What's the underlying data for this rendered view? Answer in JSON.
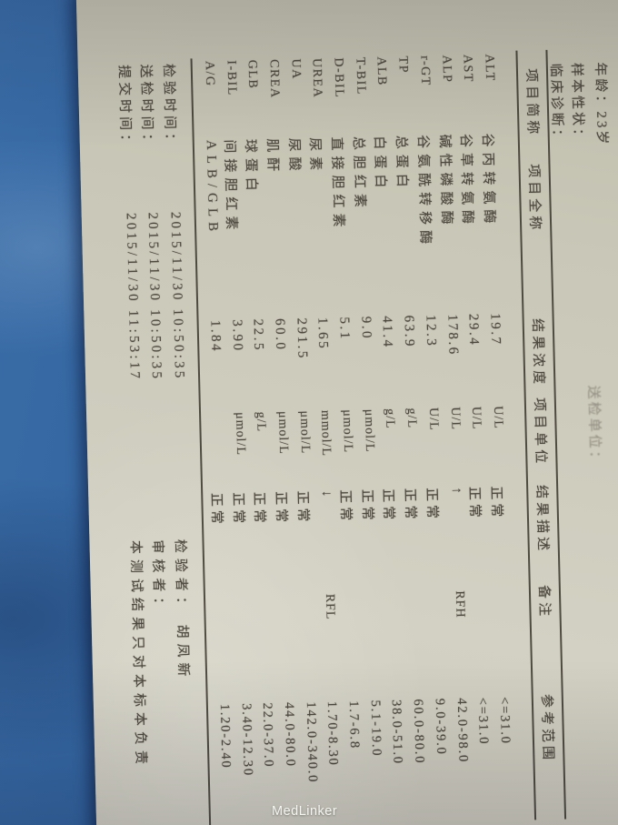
{
  "watermark": "MedLinker",
  "colors": {
    "cloth_blue": "#31639f",
    "paper": "#cdcbbb",
    "ink": "#4e4940"
  },
  "report": {
    "header_fields": [
      {
        "label": "年龄：",
        "value": "23岁"
      },
      {
        "label": "样本性状：",
        "value": ""
      },
      {
        "label": "临床诊断：",
        "value": ""
      }
    ],
    "clipped_fragment": "送检单位：",
    "table": {
      "headers": {
        "abbr": "项目简称",
        "full": "项目全称",
        "result": "结果浓度",
        "unit": "项目单位",
        "desc": "结果描述",
        "remark": "备注",
        "range": "参考范围"
      },
      "rows": [
        {
          "abbr": "ALT",
          "full": "谷丙转氨酶",
          "result": "19.7",
          "unit": "U/L",
          "desc": "正常",
          "remark": "",
          "range": "<=31.0"
        },
        {
          "abbr": "AST",
          "full": "谷草转氨酶",
          "result": "29.4",
          "unit": "U/L",
          "desc": "正常",
          "remark": "",
          "range": "<=31.0"
        },
        {
          "abbr": "ALP",
          "full": "碱性磷酸酶",
          "result": "178.6",
          "unit": "U/L",
          "desc": "↑",
          "remark": "RFH",
          "range": "42.0-98.0"
        },
        {
          "abbr": "r-GT",
          "full": "谷氨酰转移酶",
          "result": "12.3",
          "unit": "U/L",
          "desc": "正常",
          "remark": "",
          "range": "9.0-39.0"
        },
        {
          "abbr": "TP",
          "full": "总蛋白",
          "result": "63.9",
          "unit": "g/L",
          "desc": "正常",
          "remark": "",
          "range": "60.0-80.0"
        },
        {
          "abbr": "ALB",
          "full": "白蛋白",
          "result": "41.4",
          "unit": "g/L",
          "desc": "正常",
          "remark": "",
          "range": "38.0-51.0"
        },
        {
          "abbr": "T-BIL",
          "full": "总胆红素",
          "result": "9.0",
          "unit": "μmol/L",
          "desc": "正常",
          "remark": "",
          "range": "5.1-19.0"
        },
        {
          "abbr": "D-BIL",
          "full": "直接胆红素",
          "result": "5.1",
          "unit": "μmol/L",
          "desc": "正常",
          "remark": "",
          "range": "1.7-6.8"
        },
        {
          "abbr": "UREA",
          "full": "尿素",
          "result": "1.65",
          "unit": "mmol/L",
          "desc": "↓",
          "remark": "RFL",
          "range": "1.70-8.30"
        },
        {
          "abbr": "UA",
          "full": "尿酸",
          "result": "291.5",
          "unit": "μmol/L",
          "desc": "正常",
          "remark": "",
          "range": "142.0-340.0"
        },
        {
          "abbr": "CREA",
          "full": "肌酐",
          "result": "60.0",
          "unit": "μmol/L",
          "desc": "正常",
          "remark": "",
          "range": "44.0-80.0"
        },
        {
          "abbr": "GLB",
          "full": "球蛋白",
          "result": "22.5",
          "unit": "g/L",
          "desc": "正常",
          "remark": "",
          "range": "22.0-37.0"
        },
        {
          "abbr": "I-BIL",
          "full": "间接胆红素",
          "result": "3.90",
          "unit": "μmol/L",
          "desc": "正常",
          "remark": "",
          "range": "3.40-12.30"
        },
        {
          "abbr": "A/G",
          "full": "ALB/GLB",
          "result": "1.84",
          "unit": "",
          "desc": "正常",
          "remark": "",
          "range": "1.20-2.40"
        }
      ]
    },
    "footer_lines": [
      {
        "label": "检验时间：",
        "time": "2015/11/30 10:50:35",
        "right": "检验者：  胡凤新"
      },
      {
        "label": "送检时间：",
        "time": "2015/11/30 10:50:35",
        "right": "审核者："
      },
      {
        "label": "提交时间：",
        "time": "2015/11/30 11:53:17",
        "right": "本测试结果只对本标本负责"
      }
    ]
  }
}
